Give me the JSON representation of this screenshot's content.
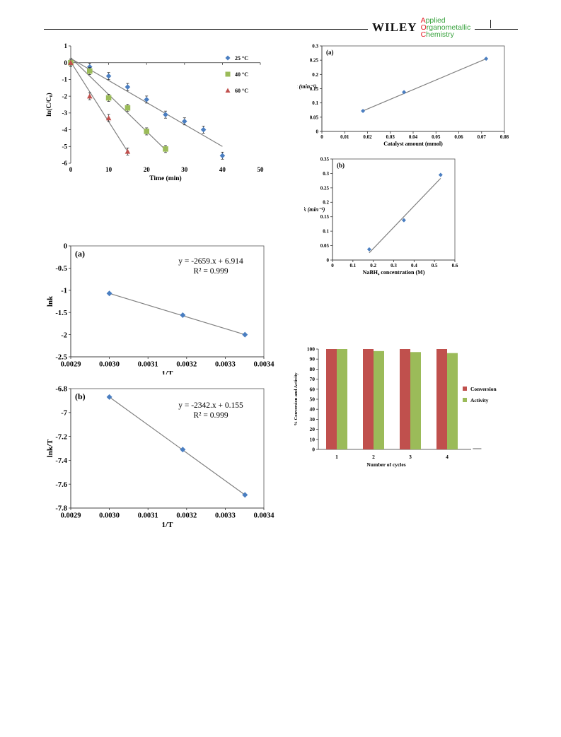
{
  "header": {
    "publisher": "WILEY",
    "journal_lines": [
      {
        "cap": "A",
        "rest": "pplied"
      },
      {
        "cap": "O",
        "rest": "rganometallic"
      },
      {
        "cap": "C",
        "rest": "hemistry"
      }
    ]
  },
  "colors": {
    "blue": "#4a7ec1",
    "green": "#9bbb59",
    "red": "#c0504d",
    "line": "#808080"
  },
  "chart_data": [
    {
      "id": "kinetics",
      "type": "scatter",
      "xlabel": "Time (min)",
      "ylabel": "ln(C/C₀)",
      "xlim": [
        0,
        50
      ],
      "ylim": [
        -6,
        1
      ],
      "xticks": [
        0,
        10,
        20,
        30,
        40,
        50
      ],
      "yticks": [
        1,
        0,
        -1,
        -2,
        -3,
        -4,
        -5,
        -6
      ],
      "legend_position": "top-right",
      "series": [
        {
          "name": "25 °C",
          "color": "#4a7ec1",
          "marker": "diamond",
          "x": [
            0,
            5,
            10,
            15,
            20,
            25,
            30,
            35,
            40
          ],
          "y": [
            0,
            -0.25,
            -0.8,
            -1.45,
            -2.2,
            -3.1,
            -3.5,
            -4.0,
            -5.55
          ],
          "fit": [
            [
              0,
              0.25
            ],
            [
              40,
              -5.0
            ]
          ]
        },
        {
          "name": "40 °C",
          "color": "#9bbb59",
          "marker": "square",
          "x": [
            0,
            5,
            10,
            15,
            20,
            25
          ],
          "y": [
            0,
            -0.5,
            -2.1,
            -2.7,
            -4.1,
            -5.15
          ],
          "fit": [
            [
              0,
              0.3
            ],
            [
              25,
              -5.2
            ]
          ]
        },
        {
          "name": "60 °C",
          "color": "#c0504d",
          "marker": "triangle",
          "x": [
            0,
            5,
            10,
            15
          ],
          "y": [
            0,
            -2.0,
            -3.3,
            -5.3
          ],
          "fit": [
            [
              0,
              0.05
            ],
            [
              15,
              -5.3
            ]
          ]
        }
      ]
    },
    {
      "id": "k-vs-catalyst",
      "type": "scatter",
      "panel": "(a)",
      "xlabel": "Catalyst amount (mmol)",
      "ylabel": "k (min⁻¹)",
      "xlim": [
        0,
        0.08
      ],
      "ylim": [
        0,
        0.3
      ],
      "xticks": [
        "0",
        "0.01",
        "0.02",
        "0.03",
        "0.04",
        "0.05",
        "0.06",
        "0.07",
        "0.08"
      ],
      "yticks": [
        "0.3",
        "0.25",
        "0.2",
        "0.15",
        "0.1",
        "0.05",
        "0"
      ],
      "series": [
        {
          "color": "#4a7ec1",
          "marker": "diamond",
          "x": [
            0.018,
            0.036,
            0.072
          ],
          "y": [
            0.072,
            0.138,
            0.255
          ],
          "fit": [
            [
              0.018,
              0.072
            ],
            [
              0.072,
              0.255
            ]
          ]
        }
      ]
    },
    {
      "id": "k-vs-nabh4",
      "type": "scatter",
      "panel": "(b)",
      "xlabel": "NaBH₄ concentration (M)",
      "ylabel": "k (min⁻¹)",
      "xlim": [
        0,
        0.6
      ],
      "ylim": [
        0,
        0.35
      ],
      "xticks": [
        "0",
        "0.1",
        "0.2",
        "0.3",
        "0.4",
        "0.5",
        "0.6"
      ],
      "yticks": [
        "0.35",
        "0.3",
        "0.25",
        "0.2",
        "0.15",
        "0.1",
        "0.05",
        "0"
      ],
      "series": [
        {
          "color": "#4a7ec1",
          "marker": "diamond",
          "x": [
            0.18,
            0.35,
            0.53
          ],
          "y": [
            0.037,
            0.138,
            0.295
          ],
          "fit": [
            [
              0.18,
              0.025
            ],
            [
              0.53,
              0.283
            ]
          ]
        }
      ]
    },
    {
      "id": "arrhenius",
      "type": "scatter",
      "panel": "(a)",
      "xlabel": "1/T",
      "ylabel": "lnk",
      "xlim": [
        0.0029,
        0.0034
      ],
      "ylim": [
        -2.5,
        0
      ],
      "xticks": [
        "0.0029",
        "0.0030",
        "0.0031",
        "0.0032",
        "0.0033",
        "0.0034"
      ],
      "yticks": [
        "0",
        "-0.5",
        "-1",
        "-1.5",
        "-2",
        "-2.5"
      ],
      "equation": "y = -2659.x + 6.914",
      "r2_label": "R² = 0.999",
      "series": [
        {
          "color": "#4a7ec1",
          "marker": "diamond",
          "x": [
            0.003,
            0.00319,
            0.003351
          ],
          "y": [
            -1.07,
            -1.56,
            -2.0
          ],
          "fit": [
            [
              0.003,
              -1.07
            ],
            [
              0.003351,
              -2.0
            ]
          ]
        }
      ]
    },
    {
      "id": "eyring",
      "type": "scatter",
      "panel": "(b)",
      "xlabel": "1/T",
      "ylabel": "lnk/T",
      "xlim": [
        0.0029,
        0.0034
      ],
      "ylim": [
        -7.8,
        -6.8
      ],
      "xticks": [
        "0.0029",
        "0.0030",
        "0.0031",
        "0.0032",
        "0.0033",
        "0.0034"
      ],
      "yticks": [
        "-6.8",
        "-7",
        "-7.2",
        "-7.4",
        "-7.6",
        "-7.8"
      ],
      "equation": "y = -2342.x + 0.155",
      "r2_label": "R² = 0.999",
      "series": [
        {
          "color": "#4a7ec1",
          "marker": "diamond",
          "x": [
            0.003,
            0.00319,
            0.003351
          ],
          "y": [
            -6.87,
            -7.31,
            -7.69
          ],
          "fit": [
            [
              0.003,
              -6.87
            ],
            [
              0.003351,
              -7.69
            ]
          ]
        }
      ]
    },
    {
      "id": "recycling",
      "type": "bar",
      "xlabel": "Number of cycles",
      "ylabel": "% Conversion and Activity",
      "ylim": [
        0,
        100
      ],
      "yticks": [
        100,
        90,
        80,
        70,
        60,
        50,
        40,
        30,
        20,
        10,
        0
      ],
      "categories": [
        "1",
        "2",
        "3",
        "4"
      ],
      "legend_position": "right",
      "series": [
        {
          "name": "Conversion",
          "color": "#c0504d",
          "values": [
            100,
            100,
            100,
            100
          ]
        },
        {
          "name": "Activity",
          "color": "#9bbb59",
          "values": [
            100,
            98,
            97,
            96
          ]
        }
      ]
    }
  ]
}
